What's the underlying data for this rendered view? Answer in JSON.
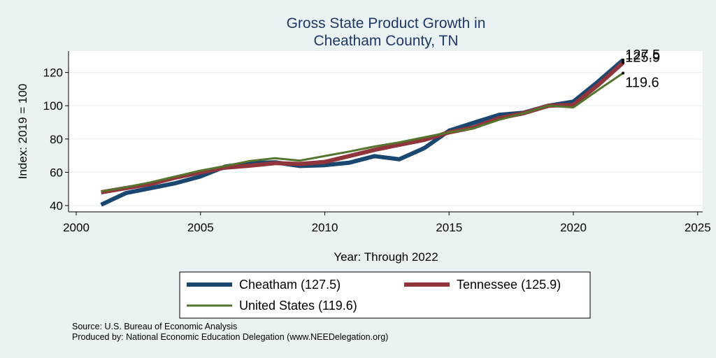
{
  "chart_data": {
    "type": "line",
    "title": [
      "Gross State Product Growth in",
      "Cheatham County, TN"
    ],
    "xlabel": "Year: Through 2022",
    "ylabel": "Index: 2019 = 100",
    "xlim": [
      2000,
      2025
    ],
    "ylim": [
      37,
      132
    ],
    "xticks": [
      2000,
      2005,
      2010,
      2015,
      2020,
      2025
    ],
    "yticks": [
      40,
      60,
      80,
      100,
      120
    ],
    "grid": true,
    "legend_position": "bottom",
    "x": [
      2001,
      2002,
      2003,
      2004,
      2005,
      2006,
      2007,
      2008,
      2009,
      2010,
      2011,
      2012,
      2013,
      2014,
      2015,
      2016,
      2017,
      2018,
      2019,
      2020,
      2021,
      2022
    ],
    "series": [
      {
        "name": "Cheatham",
        "legend_label": "Cheatham  (127.5)",
        "color": "#1a476f",
        "end_label": "127.5",
        "values": [
          40.5,
          47.5,
          50.5,
          53.5,
          57.5,
          63.5,
          65.5,
          66.0,
          63.8,
          64.3,
          65.8,
          69.7,
          67.8,
          74.5,
          85.0,
          89.8,
          94.5,
          95.8,
          100.0,
          102.5,
          114.5,
          127.5
        ]
      },
      {
        "name": "Tennessee",
        "legend_label": "Tennessee (125.9)",
        "color": "#90353b",
        "end_label": "125.9",
        "values": [
          48.0,
          50.5,
          53.0,
          56.8,
          60.0,
          62.8,
          64.0,
          65.5,
          65.0,
          66.2,
          69.8,
          73.5,
          76.5,
          79.5,
          84.0,
          87.0,
          92.5,
          95.5,
          100.0,
          100.5,
          112.5,
          125.9
        ]
      },
      {
        "name": "United States",
        "legend_label": "United States (119.6)",
        "color": "#55752f",
        "end_label": "119.6",
        "values": [
          48.5,
          51.0,
          54.0,
          57.5,
          61.0,
          63.8,
          66.8,
          68.5,
          67.0,
          69.8,
          72.5,
          75.5,
          78.0,
          81.0,
          84.0,
          86.5,
          91.5,
          95.5,
          100.0,
          99.0,
          109.5,
          119.6
        ]
      }
    ]
  },
  "footer": {
    "source": "Source: U.S. Bureau of Economic Analysis",
    "produced_by": "Produced by: National Economic Education Delegation (www.NEEDelegation.org)"
  }
}
